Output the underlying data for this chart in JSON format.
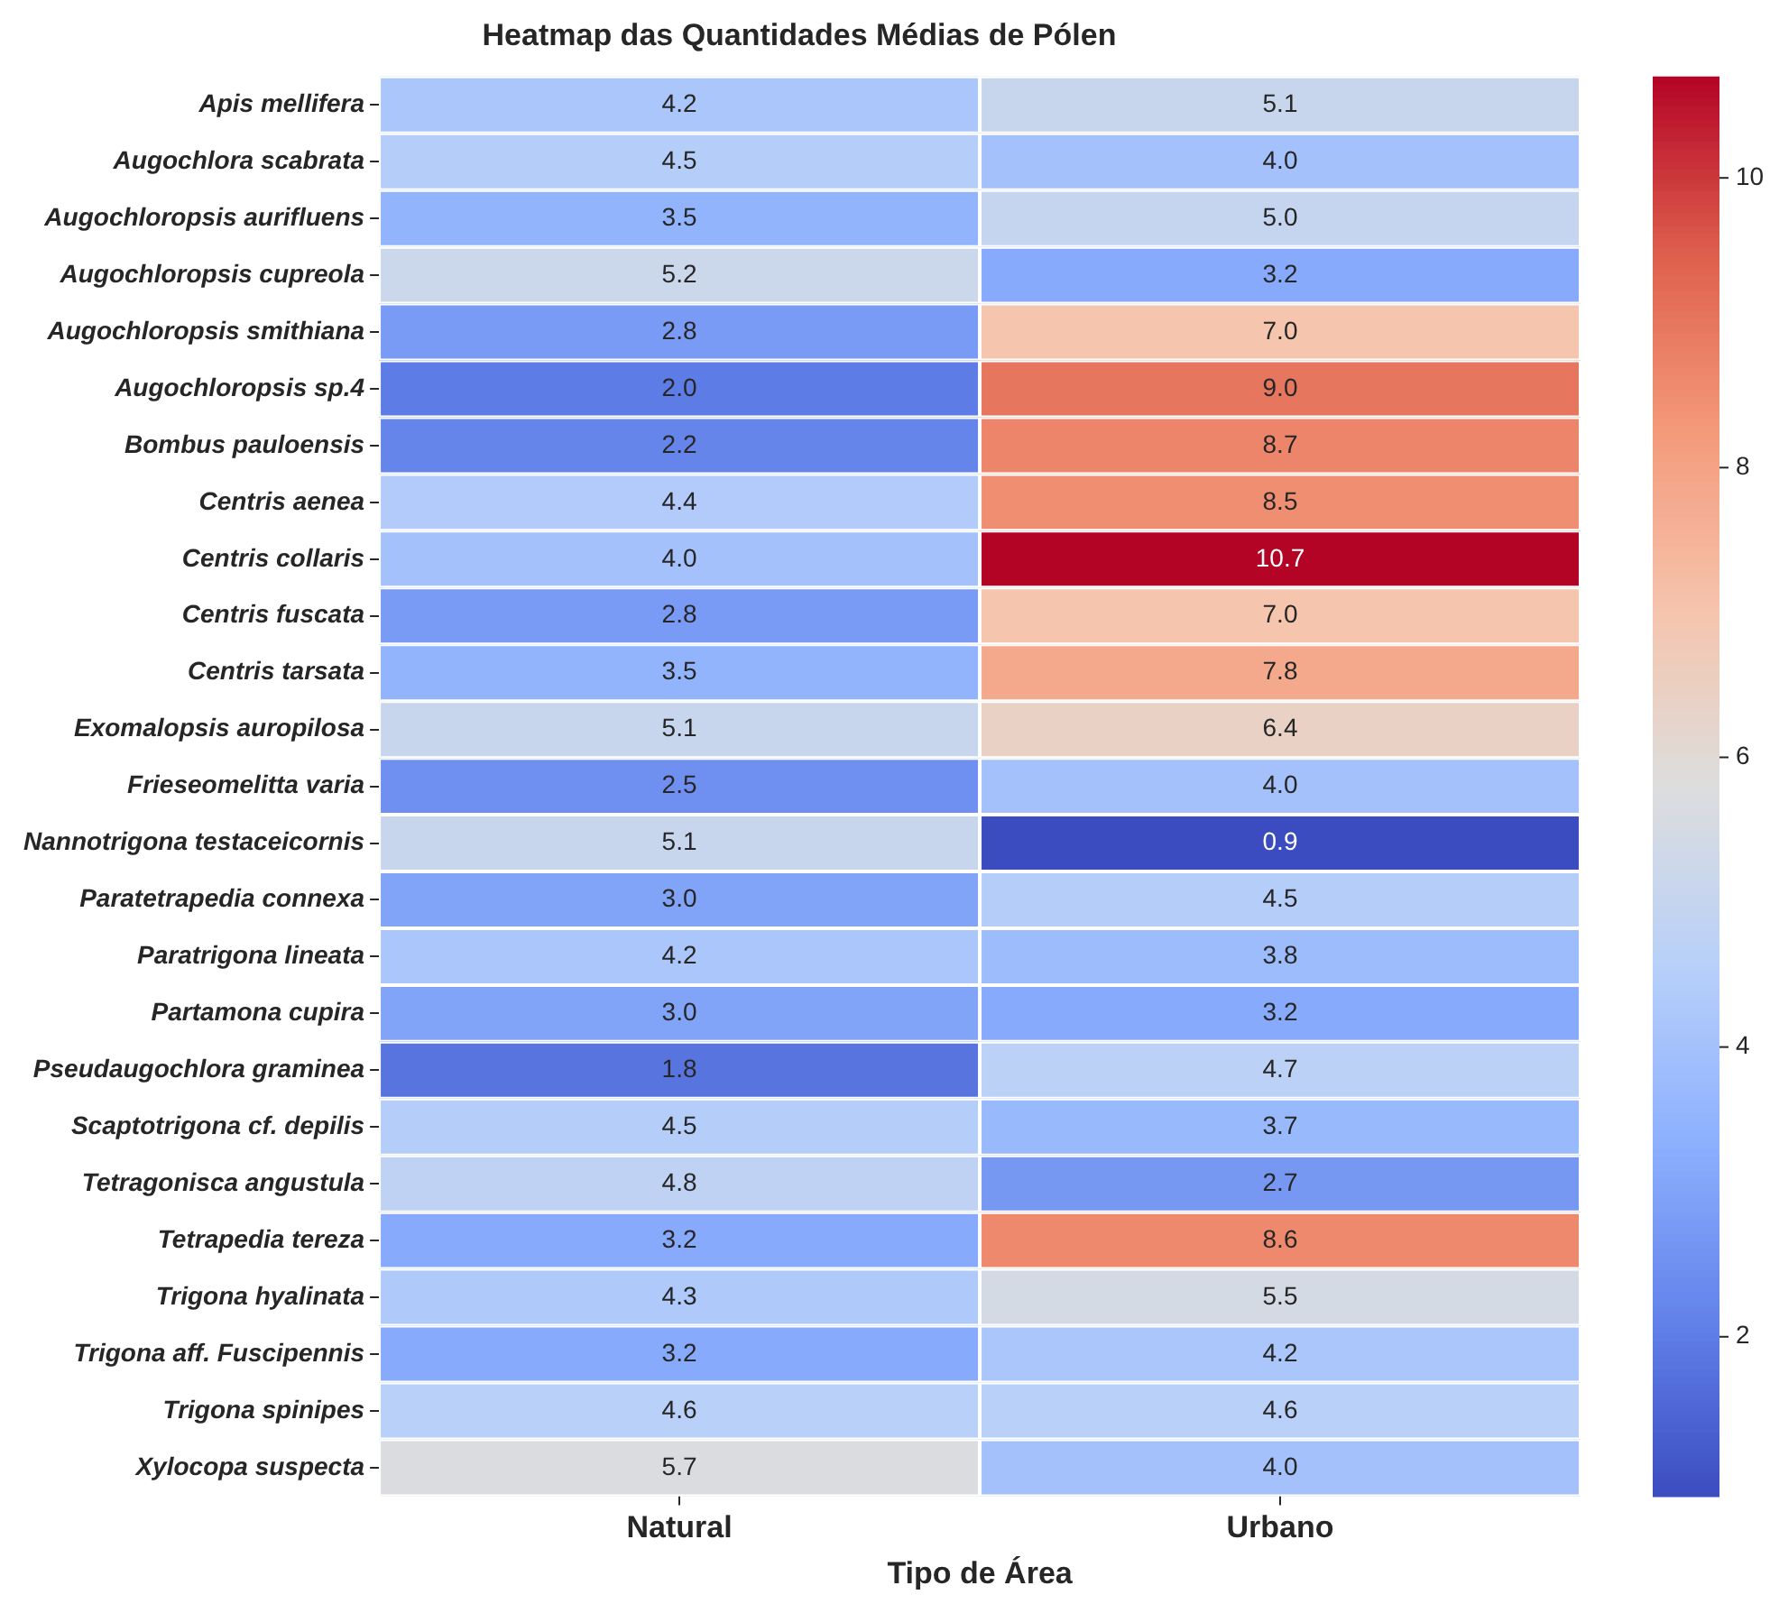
{
  "chart_data": {
    "type": "heatmap",
    "title": "Heatmap das Quantidades Médias de Pólen",
    "xlabel": "Tipo de Área",
    "categories": [
      "Natural",
      "Urbano"
    ],
    "y_categories": [
      "Apis mellifera",
      "Augochlora scabrata",
      "Augochloropsis aurifluens",
      "Augochloropsis cupreola",
      "Augochloropsis smithiana",
      "Augochloropsis sp.4",
      "Bombus pauloensis",
      "Centris aenea",
      "Centris collaris",
      "Centris fuscata",
      "Centris tarsata",
      "Exomalopsis auropilosa",
      "Frieseomelitta varia",
      "Nannotrigona testaceicornis",
      "Paratetrapedia connexa",
      "Paratrigona lineata",
      "Partamona cupira",
      "Pseudaugochlora graminea",
      "Scaptotrigona cf. depilis",
      "Tetragonisca angustula",
      "Tetrapedia tereza",
      "Trigona hyalinata",
      "Trigona aff. Fuscipennis",
      "Trigona spinipes",
      "Xylocopa suspecta"
    ],
    "cells": [
      [
        4.2,
        5.1
      ],
      [
        4.5,
        4.0
      ],
      [
        3.5,
        5.0
      ],
      [
        5.2,
        3.2
      ],
      [
        2.8,
        7.0
      ],
      [
        2.0,
        9.0
      ],
      [
        2.2,
        8.7
      ],
      [
        4.4,
        8.5
      ],
      [
        4.0,
        10.7
      ],
      [
        2.8,
        7.0
      ],
      [
        3.5,
        7.8
      ],
      [
        5.1,
        6.4
      ],
      [
        2.5,
        4.0
      ],
      [
        5.1,
        0.9
      ],
      [
        3.0,
        4.5
      ],
      [
        4.2,
        3.8
      ],
      [
        3.0,
        3.2
      ],
      [
        1.8,
        4.7
      ],
      [
        4.5,
        3.7
      ],
      [
        4.8,
        2.7
      ],
      [
        3.2,
        8.6
      ],
      [
        4.3,
        5.5
      ],
      [
        3.2,
        4.2
      ],
      [
        4.6,
        4.6
      ],
      [
        5.7,
        4.0
      ]
    ],
    "cell_labels": [
      [
        "4.2",
        "5.1"
      ],
      [
        "4.5",
        "4.0"
      ],
      [
        "3.5",
        "5.0"
      ],
      [
        "5.2",
        "3.2"
      ],
      [
        "2.8",
        "7.0"
      ],
      [
        "2.0",
        "9.0"
      ],
      [
        "2.2",
        "8.7"
      ],
      [
        "4.4",
        "8.5"
      ],
      [
        "4.0",
        "10.7"
      ],
      [
        "2.8",
        "7.0"
      ],
      [
        "3.5",
        "7.8"
      ],
      [
        "5.1",
        "6.4"
      ],
      [
        "2.5",
        "4.0"
      ],
      [
        "5.1",
        "0.9"
      ],
      [
        "3.0",
        "4.5"
      ],
      [
        "4.2",
        "3.8"
      ],
      [
        "3.0",
        "3.2"
      ],
      [
        "1.8",
        "4.7"
      ],
      [
        "4.5",
        "3.7"
      ],
      [
        "4.8",
        "2.7"
      ],
      [
        "3.2",
        "8.6"
      ],
      [
        "4.3",
        "5.5"
      ],
      [
        "3.2",
        "4.2"
      ],
      [
        "4.6",
        "4.6"
      ],
      [
        "5.7",
        "4.0"
      ]
    ],
    "clim": [
      0.9,
      10.7
    ],
    "cticks": [
      2,
      4,
      6,
      8,
      10
    ],
    "legend": false,
    "grid": false
  }
}
